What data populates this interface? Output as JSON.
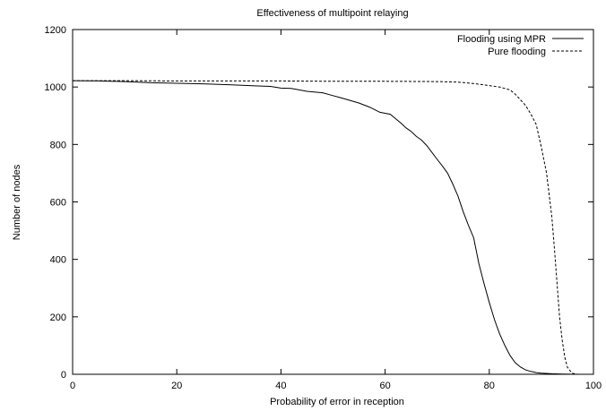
{
  "chart_data": {
    "type": "line",
    "title": "Effectiveness of multipoint relaying",
    "xlabel": "Probability of error in reception",
    "ylabel": "Number of nodes",
    "xlim": [
      0,
      100
    ],
    "ylim": [
      0,
      1200
    ],
    "xticks": [
      0,
      20,
      40,
      60,
      80,
      100
    ],
    "yticks": [
      0,
      200,
      400,
      600,
      800,
      1000,
      1200
    ],
    "xtick_labels": [
      "0",
      "20",
      "40",
      "60",
      "80",
      "100"
    ],
    "ytick_labels": [
      "0",
      "200",
      "400",
      "600",
      "800",
      "1000",
      "1200"
    ],
    "grid": false,
    "legend_position": "top-right",
    "series": [
      {
        "name": "Flooding using MPR",
        "style": "solid",
        "x": [
          0,
          5,
          10,
          15,
          20,
          25,
          30,
          35,
          38,
          40,
          42,
          45,
          48,
          50,
          52,
          55,
          57,
          59,
          61,
          62,
          63,
          64,
          65,
          66,
          67,
          68,
          69,
          70,
          71,
          72,
          73,
          74,
          75,
          76,
          77,
          78,
          79,
          80,
          81,
          82,
          83,
          84,
          85,
          86,
          87,
          88,
          89,
          90,
          92,
          94,
          96
        ],
        "y": [
          1022,
          1021,
          1019,
          1015,
          1013,
          1011,
          1008,
          1004,
          1002,
          996,
          995,
          985,
          980,
          970,
          960,
          944,
          930,
          912,
          905,
          890,
          875,
          858,
          845,
          828,
          815,
          796,
          772,
          748,
          725,
          700,
          662,
          620,
          565,
          518,
          475,
          385,
          315,
          250,
          190,
          140,
          100,
          65,
          40,
          25,
          15,
          10,
          6,
          4,
          2,
          1,
          0
        ]
      },
      {
        "name": "Pure flooding",
        "style": "dashed",
        "x": [
          0,
          10,
          20,
          30,
          40,
          50,
          60,
          70,
          74,
          76,
          78,
          80,
          82,
          84,
          85,
          86,
          87,
          88,
          89,
          90,
          91,
          92,
          92.5,
          93,
          93.5,
          94,
          94.5,
          95,
          95.5,
          96,
          97
        ],
        "y": [
          1022,
          1022,
          1021,
          1021,
          1021,
          1020,
          1020,
          1019,
          1017,
          1014,
          1010,
          1005,
          1000,
          990,
          975,
          955,
          935,
          905,
          870,
          790,
          700,
          550,
          440,
          320,
          200,
          120,
          60,
          25,
          12,
          3,
          0
        ]
      }
    ]
  }
}
